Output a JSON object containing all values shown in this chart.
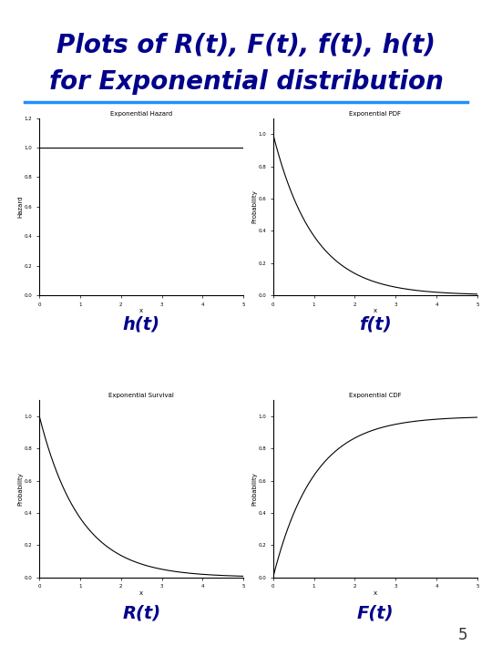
{
  "title_line1": "Plots of R(t), F(t), f(t), h(t)",
  "title_line2": "for Exponential distribution",
  "title_color": "#00008B",
  "title_fontsize": 20,
  "lambda": 1.0,
  "t_max": 5,
  "subplot_titles": {
    "hazard": "Exponential Hazard",
    "pdf": "Exponential PDF",
    "survival": "Exponential Survival",
    "cdf": "Exponential CDF"
  },
  "subplot_labels": {
    "hazard": "h(t)",
    "pdf": "f(t)",
    "survival": "R(t)",
    "cdf": "F(t)"
  },
  "ylabel_hazard": "Hazard",
  "ylabel_pdf": "Probability",
  "ylabel_survival": "Probability",
  "ylabel_cdf": "Probability",
  "xlabel": "x",
  "label_fontsize": 14,
  "label_color": "#00008B",
  "page_number": "5",
  "line_color": "#000000",
  "background_color": "#ffffff",
  "header_underline_color": "#1E90FF"
}
